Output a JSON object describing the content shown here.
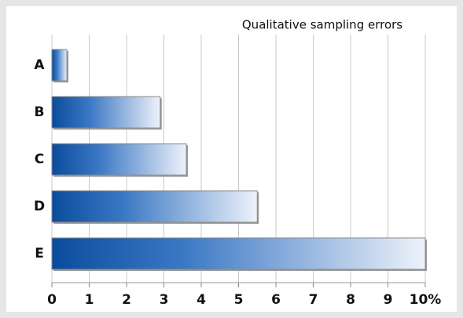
{
  "chart_data": {
    "type": "bar",
    "orientation": "horizontal",
    "title": "Qualitative sampling errors",
    "categories": [
      "A",
      "B",
      "C",
      "D",
      "E"
    ],
    "values": [
      0.4,
      2.9,
      3.6,
      5.5,
      10
    ],
    "color": "#0a4c9c",
    "xlim": [
      0,
      10
    ],
    "xticks": [
      0,
      1,
      2,
      3,
      4,
      5,
      6,
      7,
      8,
      9,
      {
        "value": 10,
        "label": "10%"
      }
    ],
    "grid": true
  }
}
